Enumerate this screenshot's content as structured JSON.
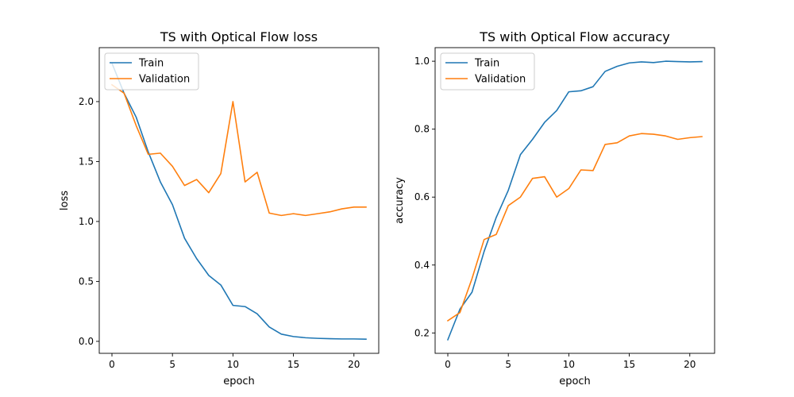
{
  "colors": {
    "train": "#1f77b4",
    "validation": "#ff7f0e",
    "axes": "#000000",
    "background": "#ffffff"
  },
  "chart_data": [
    {
      "type": "line",
      "title": "TS with Optical Flow loss",
      "xlabel": "epoch",
      "ylabel": "loss",
      "xlim": [
        -1.05,
        22.05
      ],
      "ylim": [
        -0.1,
        2.45
      ],
      "xticks": [
        0,
        5,
        10,
        15,
        20
      ],
      "xtick_labels": [
        "0",
        "5",
        "10",
        "15",
        "20"
      ],
      "yticks": [
        0.0,
        0.5,
        1.0,
        1.5,
        2.0
      ],
      "ytick_labels": [
        "0.0",
        "0.5",
        "1.0",
        "1.5",
        "2.0"
      ],
      "grid": false,
      "legend_position": "upper left",
      "x": [
        0,
        1,
        2,
        3,
        4,
        5,
        6,
        7,
        8,
        9,
        10,
        11,
        12,
        13,
        14,
        15,
        16,
        17,
        18,
        19,
        20,
        21
      ],
      "series": [
        {
          "name": "Train",
          "color": "#1f77b4",
          "values": [
            2.32,
            2.07,
            1.87,
            1.58,
            1.33,
            1.14,
            0.86,
            0.69,
            0.55,
            0.47,
            0.3,
            0.29,
            0.23,
            0.12,
            0.06,
            0.04,
            0.03,
            0.025,
            0.022,
            0.02,
            0.02,
            0.018
          ]
        },
        {
          "name": "Validation",
          "color": "#ff7f0e",
          "values": [
            2.14,
            2.07,
            1.8,
            1.56,
            1.57,
            1.46,
            1.3,
            1.35,
            1.24,
            1.4,
            2.0,
            1.33,
            1.41,
            1.07,
            1.05,
            1.065,
            1.05,
            1.065,
            1.08,
            1.105,
            1.12,
            1.12
          ]
        }
      ]
    },
    {
      "type": "line",
      "title": "TS with Optical Flow accuracy",
      "xlabel": "epoch",
      "ylabel": "accuracy",
      "xlim": [
        -1.05,
        22.05
      ],
      "ylim": [
        0.14,
        1.04
      ],
      "xticks": [
        0,
        5,
        10,
        15,
        20
      ],
      "xtick_labels": [
        "0",
        "5",
        "10",
        "15",
        "20"
      ],
      "yticks": [
        0.2,
        0.4,
        0.6,
        0.8,
        1.0
      ],
      "ytick_labels": [
        "0.2",
        "0.4",
        "0.6",
        "0.8",
        "1.0"
      ],
      "grid": false,
      "legend_position": "upper left",
      "x": [
        0,
        1,
        2,
        3,
        4,
        5,
        6,
        7,
        8,
        9,
        10,
        11,
        12,
        13,
        14,
        15,
        16,
        17,
        18,
        19,
        20,
        21
      ],
      "series": [
        {
          "name": "Train",
          "color": "#1f77b4",
          "values": [
            0.18,
            0.27,
            0.32,
            0.44,
            0.54,
            0.62,
            0.725,
            0.77,
            0.82,
            0.855,
            0.91,
            0.913,
            0.925,
            0.97,
            0.985,
            0.995,
            0.998,
            0.996,
            1.0,
            0.999,
            0.998,
            0.999
          ]
        },
        {
          "name": "Validation",
          "color": "#ff7f0e",
          "values": [
            0.236,
            0.26,
            0.36,
            0.475,
            0.49,
            0.575,
            0.6,
            0.655,
            0.66,
            0.6,
            0.625,
            0.68,
            0.678,
            0.755,
            0.76,
            0.78,
            0.787,
            0.785,
            0.78,
            0.77,
            0.775,
            0.778
          ]
        }
      ]
    }
  ]
}
